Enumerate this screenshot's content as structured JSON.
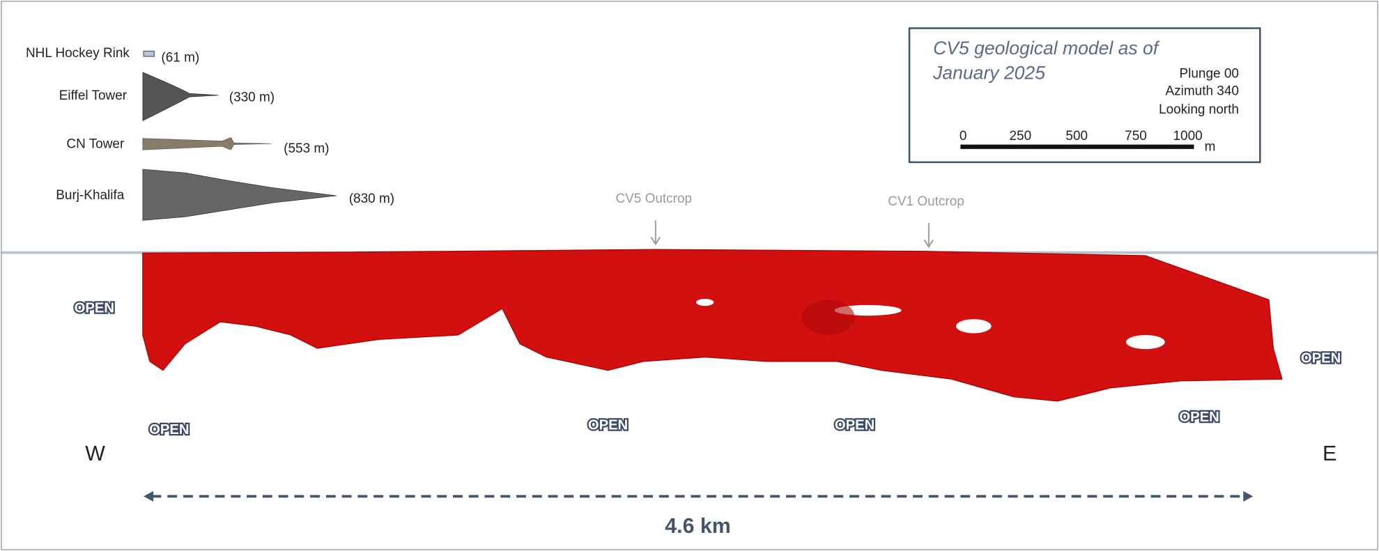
{
  "comparisons": [
    {
      "label": "NHL Hockey Rink",
      "height": "(61 m)"
    },
    {
      "label": "Eiffel Tower",
      "height": "(330 m)"
    },
    {
      "label": "CN Tower",
      "height": "(553 m)"
    },
    {
      "label": "Burj-Khalifa",
      "height": "(830 m)"
    }
  ],
  "legend_box": {
    "title_lines": [
      "CV5 geological model as of",
      "January 2025"
    ],
    "lines": [
      "Plunge 00",
      "Azimuth 340",
      "Looking north"
    ],
    "scale_labels": [
      "0",
      "250",
      "500",
      "750",
      "1000"
    ],
    "scale_unit": "m"
  },
  "outcrops": [
    "CV5 Outcrop",
    "CV1 Outcrop"
  ],
  "open_labels": [
    "OPEN",
    "OPEN",
    "OPEN",
    "OPEN",
    "OPEN",
    "OPEN"
  ],
  "directions": {
    "west": "W",
    "east": "E"
  },
  "distance": "4.6 km"
}
